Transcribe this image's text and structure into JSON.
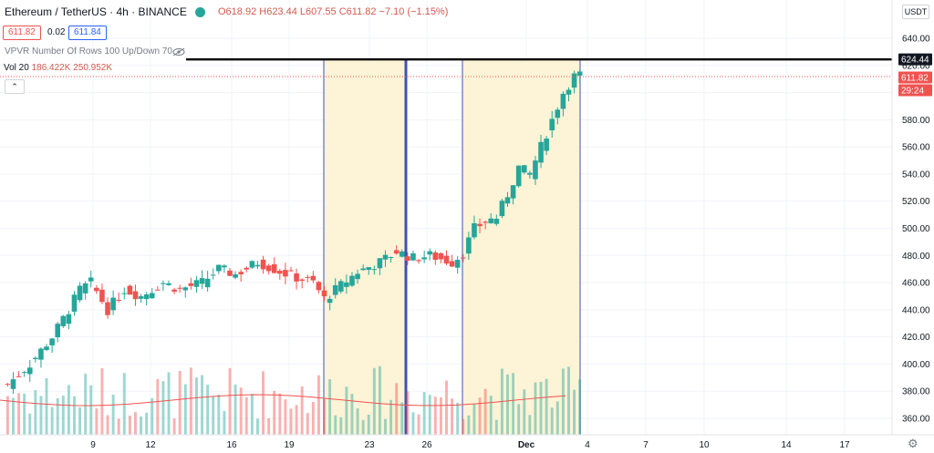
{
  "header": {
    "title": "Ethereum / TetherUS · 4h · BINANCE",
    "ohlc": "O618.92  H623.44  L607.55  C611.82  −7.10 (−1.15%)",
    "bid": "611.82",
    "spread": "0.02",
    "ask": "611.84",
    "vpvr": "VPVR Number Of Rows 100 Up/Down 70",
    "vol_label": "Vol 20",
    "vol_values": "186.422K  250.952K",
    "collapse_glyph": "⌃",
    "currency": "USDT",
    "settings_glyph": "⚙"
  },
  "colors": {
    "up": "#26a69a",
    "down": "#ef5350",
    "highlight": "#fdf3d6",
    "box_border": "#3f51b5"
  },
  "chart_data": {
    "type": "candlestick",
    "symbol": "Ethereum / TetherUS",
    "interval": "4h",
    "exchange": "BINANCE",
    "ylim": [
      350,
      650
    ],
    "y_ticks": [
      360,
      380,
      400,
      420,
      440,
      460,
      480,
      500,
      520,
      540,
      560,
      580,
      600,
      620,
      640
    ],
    "x_ticks": [
      "9",
      "12",
      "16",
      "19",
      "23",
      "26",
      "Dec",
      "4",
      "7",
      "10",
      "14",
      "17"
    ],
    "last_price": 611.82,
    "countdown": "29:24",
    "horizontal_line": 624.44,
    "close_path": [
      [
        0,
        385
      ],
      [
        4,
        400
      ],
      [
        8,
        420
      ],
      [
        11,
        440
      ],
      [
        13,
        455
      ],
      [
        15,
        460
      ],
      [
        18,
        440
      ],
      [
        21,
        455
      ],
      [
        24,
        450
      ],
      [
        28,
        460
      ],
      [
        31,
        455
      ],
      [
        35,
        460
      ],
      [
        38,
        470
      ],
      [
        41,
        466
      ],
      [
        45,
        475
      ],
      [
        48,
        470
      ],
      [
        51,
        465
      ],
      [
        55,
        460
      ],
      [
        57,
        448
      ],
      [
        60,
        458
      ],
      [
        63,
        468
      ],
      [
        67,
        475
      ],
      [
        70,
        483
      ],
      [
        73,
        478
      ],
      [
        76,
        480
      ],
      [
        80,
        475
      ],
      [
        82,
        482
      ],
      [
        84,
        500
      ],
      [
        86,
        505
      ],
      [
        88,
        508
      ],
      [
        90,
        525
      ],
      [
        92,
        545
      ],
      [
        94,
        540
      ],
      [
        96,
        560
      ],
      [
        98,
        580
      ],
      [
        100,
        600
      ],
      [
        102,
        612
      ],
      [
        104,
        614
      ],
      [
        106,
        598
      ],
      [
        108,
        593
      ],
      [
        110,
        580
      ],
      [
        112,
        545
      ],
      [
        114,
        525
      ],
      [
        116,
        515
      ],
      [
        118,
        512
      ],
      [
        120,
        505
      ],
      [
        122,
        495
      ],
      [
        124,
        512
      ],
      [
        126,
        525
      ],
      [
        128,
        535
      ],
      [
        130,
        545
      ],
      [
        132,
        560
      ],
      [
        134,
        575
      ],
      [
        136,
        590
      ],
      [
        138,
        605
      ],
      [
        140,
        612
      ],
      [
        142,
        615
      ],
      [
        144,
        600
      ],
      [
        146,
        590
      ],
      [
        148,
        598
      ],
      [
        150,
        592
      ],
      [
        152,
        598
      ],
      [
        154,
        618
      ],
      [
        155,
        612
      ]
    ],
    "highlight_ranges": [
      [
        0,
        23
      ],
      [
        24,
        25
      ],
      [
        27,
        34
      ]
    ],
    "volume_mean_level": 0.25
  }
}
